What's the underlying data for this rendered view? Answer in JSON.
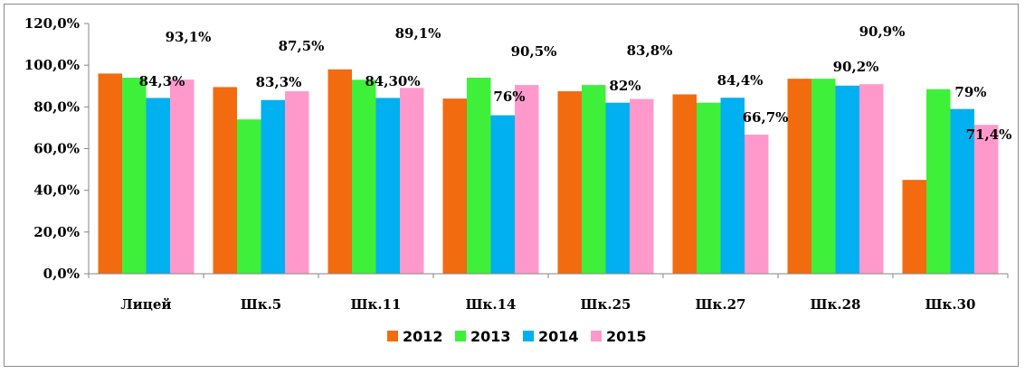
{
  "chart_data": {
    "type": "bar",
    "categories": [
      "Лицей",
      "Шк.5",
      "Шк.11",
      "Шк.14",
      "Шк.25",
      "Шк.27",
      "Шк.28",
      "Шк.30"
    ],
    "series": [
      {
        "name": "2012",
        "color": "#f26b0f",
        "values": [
          96.0,
          89.5,
          98.0,
          84.0,
          87.5,
          86.0,
          93.5,
          45.0
        ]
      },
      {
        "name": "2013",
        "color": "#3ef03a",
        "values": [
          94.0,
          74.0,
          93.0,
          94.0,
          90.5,
          82.0,
          93.5,
          88.5
        ]
      },
      {
        "name": "2014",
        "color": "#00b0f0",
        "values": [
          84.3,
          83.3,
          84.3,
          76.0,
          82.0,
          84.4,
          90.2,
          79.0
        ]
      },
      {
        "name": "2015",
        "color": "#ff99cc",
        "values": [
          93.1,
          87.5,
          89.1,
          90.5,
          83.8,
          66.7,
          90.9,
          71.4
        ]
      }
    ],
    "data_labels": {
      "2014": [
        "84,3%",
        "83,3%",
        "84,30%",
        "76%",
        "82%",
        "84,4%",
        "90,2%",
        "79%"
      ],
      "2015": [
        "93,1%",
        "87,5%",
        "89,1%",
        "90,5%",
        "83,8%",
        "66,7%",
        "90,9%",
        "71,4%"
      ]
    },
    "y_ticks": [
      "0,0%",
      "20,0%",
      "40,0%",
      "60,0%",
      "80,0%",
      "100,0%",
      "120,0%"
    ],
    "ylim": [
      0,
      120
    ],
    "ytick_step": 20,
    "grid": false,
    "legend": "bottom",
    "title": "",
    "xlabel": "",
    "ylabel": ""
  }
}
